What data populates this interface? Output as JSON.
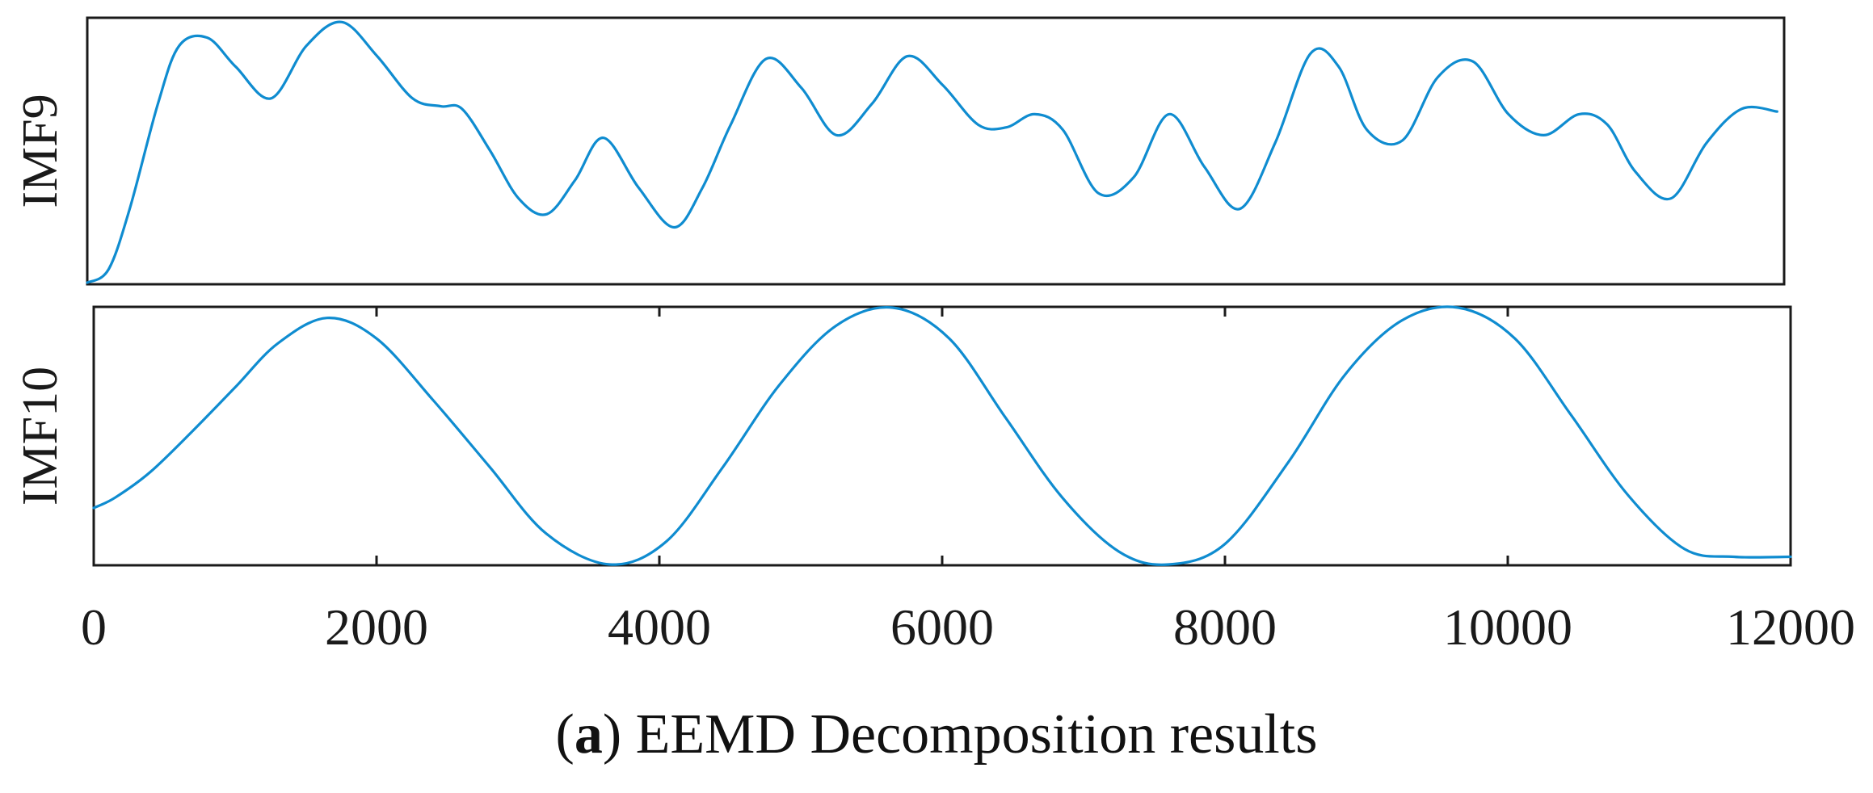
{
  "chart_data": [
    {
      "type": "line",
      "ylabel": "IMF9",
      "xlim": [
        0,
        12000
      ],
      "series": [
        {
          "color": "#0f8cd0",
          "x": [
            0,
            150,
            300,
            500,
            650,
            850,
            1050,
            1300,
            1550,
            1800,
            2050,
            2300,
            2500,
            2650,
            2850,
            3050,
            3250,
            3450,
            3650,
            3900,
            4150,
            4350,
            4550,
            4800,
            5050,
            5300,
            5550,
            5800,
            6050,
            6300,
            6500,
            6700,
            6900,
            7150,
            7400,
            7650,
            7900,
            8150,
            8400,
            8650,
            8850,
            9050,
            9300,
            9550,
            9800,
            10050,
            10300,
            10550,
            10750,
            10950,
            11200,
            11450,
            11700,
            11950
          ],
          "y": [
            0.0,
            0.05,
            0.28,
            0.68,
            0.9,
            0.93,
            0.82,
            0.7,
            0.9,
            0.99,
            0.86,
            0.7,
            0.67,
            0.66,
            0.5,
            0.32,
            0.26,
            0.39,
            0.55,
            0.36,
            0.21,
            0.36,
            0.6,
            0.85,
            0.74,
            0.56,
            0.68,
            0.86,
            0.75,
            0.6,
            0.59,
            0.64,
            0.58,
            0.34,
            0.4,
            0.64,
            0.44,
            0.28,
            0.53,
            0.87,
            0.82,
            0.58,
            0.54,
            0.78,
            0.84,
            0.64,
            0.56,
            0.64,
            0.6,
            0.42,
            0.32,
            0.53,
            0.66,
            0.65
          ]
        }
      ]
    },
    {
      "type": "line",
      "ylabel": "IMF10",
      "xlim": [
        0,
        12000
      ],
      "xticks": [
        "0",
        "2000",
        "4000",
        "6000",
        "8000",
        "10000",
        "12000"
      ],
      "series": [
        {
          "color": "#0f8cd0",
          "x": [
            0,
            150,
            400,
            700,
            1000,
            1300,
            1650,
            2000,
            2400,
            2800,
            3200,
            3650,
            4050,
            4450,
            4850,
            5250,
            5650,
            6050,
            6450,
            6850,
            7250,
            7600,
            8000,
            8450,
            8850,
            9250,
            9650,
            10050,
            10450,
            10850,
            11250,
            11600,
            12000
          ],
          "y": [
            0.22,
            0.26,
            0.36,
            0.52,
            0.69,
            0.86,
            0.96,
            0.88,
            0.64,
            0.38,
            0.12,
            0.0,
            0.09,
            0.38,
            0.7,
            0.93,
            1.0,
            0.88,
            0.57,
            0.26,
            0.05,
            0.0,
            0.08,
            0.4,
            0.74,
            0.95,
            1.0,
            0.88,
            0.58,
            0.27,
            0.06,
            0.03,
            0.03
          ]
        }
      ]
    }
  ],
  "caption": {
    "label": "a",
    "text": " EEMD Decomposition results"
  }
}
